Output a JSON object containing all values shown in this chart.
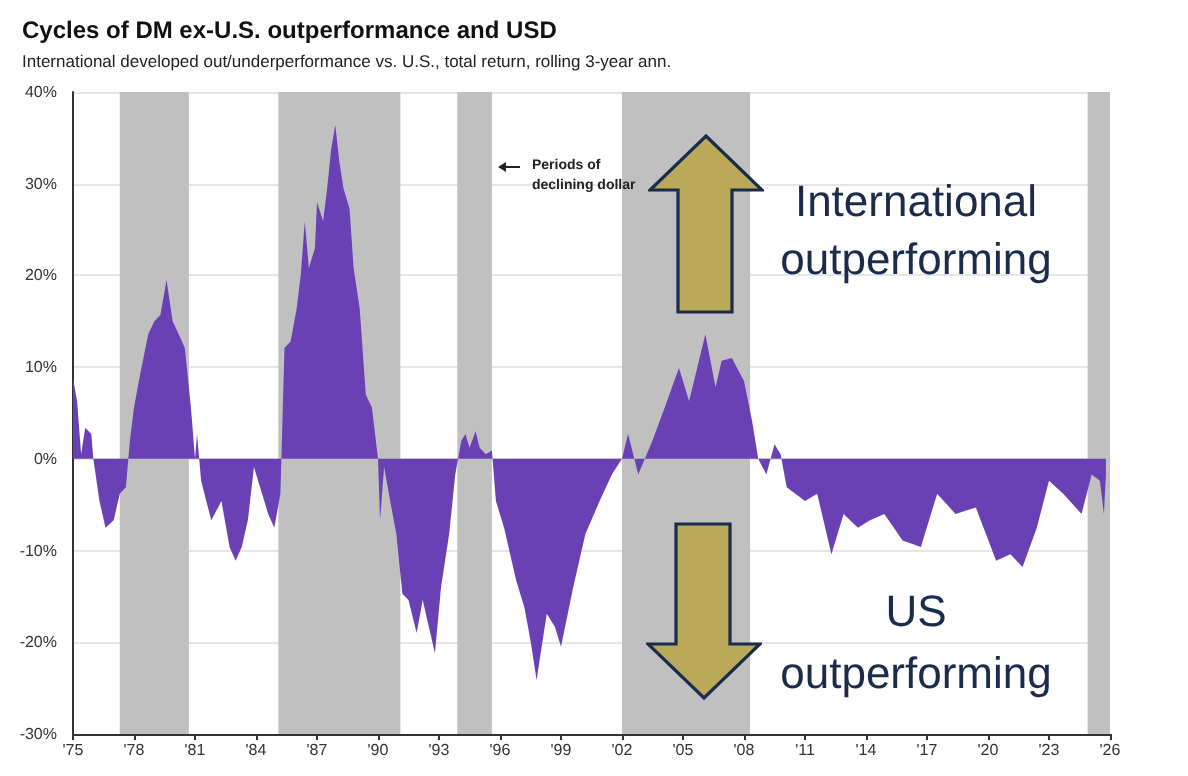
{
  "chart_data": {
    "type": "area",
    "title": "Cycles of DM ex-U.S. outperformance and USD",
    "subtitle": "International developed out/underperformance vs. U.S., total return, rolling 3-year ann.",
    "annotations": [
      "Periods of\ndeclining dollar",
      "International\noutperforming",
      "US\noutperforming"
    ],
    "xlim": [
      1975,
      2026
    ],
    "xticks": [
      {
        "value": 1975,
        "label": "'75"
      },
      {
        "value": 1978,
        "label": "'78"
      },
      {
        "value": 1981,
        "label": "'81"
      },
      {
        "value": 1984,
        "label": "'84"
      },
      {
        "value": 1987,
        "label": "'87"
      },
      {
        "value": 1990,
        "label": "'90"
      },
      {
        "value": 1993,
        "label": "'93"
      },
      {
        "value": 1996,
        "label": "'96"
      },
      {
        "value": 1999,
        "label": "'99"
      },
      {
        "value": 2002,
        "label": "'02"
      },
      {
        "value": 2005,
        "label": "'05"
      },
      {
        "value": 2008,
        "label": "'08"
      },
      {
        "value": 2011,
        "label": "'11"
      },
      {
        "value": 2014,
        "label": "'14"
      },
      {
        "value": 2017,
        "label": "'17"
      },
      {
        "value": 2020,
        "label": "'20"
      },
      {
        "value": 2023,
        "label": "'23"
      },
      {
        "value": 2026,
        "label": "'26"
      }
    ],
    "ylim": [
      -30,
      40
    ],
    "yticks": [
      {
        "value": -30,
        "label": "-30%"
      },
      {
        "value": -20,
        "label": "-20%"
      },
      {
        "value": -10,
        "label": "-10%"
      },
      {
        "value": 0,
        "label": "0%"
      },
      {
        "value": 10,
        "label": "10%"
      },
      {
        "value": 20,
        "label": "20%"
      },
      {
        "value": 30,
        "label": "30%"
      },
      {
        "value": 40,
        "label": "40%"
      }
    ],
    "grid": "y",
    "bands": [
      {
        "axis": "x",
        "from": 1977.3,
        "to": 1980.7,
        "color": "#c0c0c0"
      },
      {
        "axis": "x",
        "from": 1985.1,
        "to": 1991.1,
        "color": "#c0c0c0"
      },
      {
        "axis": "x",
        "from": 1993.9,
        "to": 1995.6,
        "color": "#c0c0c0"
      },
      {
        "axis": "x",
        "from": 2002.0,
        "to": 2008.3,
        "color": "#c0c0c0"
      },
      {
        "axis": "x",
        "from": 2024.9,
        "to": 2026,
        "color": "#c0c0c0"
      }
    ],
    "series": [
      {
        "color": "#6a41b4",
        "x": [
          1975.0,
          1975.2,
          1975.4,
          1975.6,
          1975.9,
          1976.0,
          1976.3,
          1976.6,
          1977.0,
          1977.3,
          1977.6,
          1977.8,
          1978.0,
          1978.3,
          1978.7,
          1979.0,
          1979.3,
          1979.6,
          1979.9,
          1980.2,
          1980.5,
          1980.8,
          1981.0,
          1981.1,
          1981.3,
          1981.8,
          1982.3,
          1982.7,
          1983.0,
          1983.3,
          1983.6,
          1983.9,
          1984.2,
          1984.6,
          1984.9,
          1985.2,
          1985.4,
          1985.7,
          1986.0,
          1986.2,
          1986.4,
          1986.6,
          1986.9,
          1987.0,
          1987.3,
          1987.5,
          1987.7,
          1987.9,
          1988.1,
          1988.3,
          1988.6,
          1988.8,
          1989.1,
          1989.4,
          1989.7,
          1990.0,
          1990.1,
          1990.3,
          1990.6,
          1990.9,
          1991.2,
          1991.5,
          1991.9,
          1992.2,
          1992.5,
          1992.8,
          1993.1,
          1993.5,
          1993.8,
          1994.1,
          1994.3,
          1994.5,
          1994.8,
          1995.0,
          1995.3,
          1995.6,
          1995.8,
          1996.2,
          1996.5,
          1996.8,
          1997.2,
          1997.5,
          1997.8,
          1998.0,
          1998.3,
          1998.7,
          1999.0,
          1999.6,
          2000.2,
          2000.9,
          2001.5,
          2002.0,
          2002.3,
          2002.8,
          2003.5,
          2004.1,
          2004.8,
          2005.3,
          2006.1,
          2006.6,
          2006.9,
          2007.4,
          2008.0,
          2008.4,
          2008.7,
          2009.1,
          2009.5,
          2009.8,
          2010.1,
          2011.0,
          2011.6,
          2012.3,
          2012.9,
          2013.6,
          2014.2,
          2014.9,
          2015.8,
          2016.7,
          2017.5,
          2018.4,
          2019.4,
          2020.4,
          2021.1,
          2021.7,
          2022.4,
          2023.0,
          2023.7,
          2024.6,
          2025.1,
          2025.5,
          2025.7,
          2025.8
        ],
        "values": [
          8.8,
          6.3,
          0.5,
          3.4,
          2.7,
          0,
          -4.6,
          -7.5,
          -6.7,
          -3.8,
          -3.1,
          2,
          5.6,
          9.2,
          13.6,
          15,
          15.7,
          19.5,
          15,
          13.6,
          12.1,
          5.6,
          0,
          2.7,
          -2.4,
          -6.7,
          -4.6,
          -9.6,
          -11.1,
          -9.6,
          -6.7,
          -0.9,
          -3.1,
          -6,
          -7.5,
          -3.8,
          12.1,
          12.8,
          16.4,
          20,
          25.9,
          20.8,
          23,
          28,
          25.9,
          29.5,
          33.8,
          36.4,
          32.4,
          29.5,
          27.3,
          20.8,
          16.4,
          7,
          5.6,
          0,
          -6.7,
          -0.9,
          -4.6,
          -8.2,
          -14.7,
          -15.4,
          -19,
          -15.4,
          -18.3,
          -21.2,
          -14,
          -8.2,
          -1.7,
          2,
          2.7,
          1.2,
          3,
          1.2,
          0.5,
          0.9,
          -4.6,
          -7.5,
          -10.4,
          -13.3,
          -16.2,
          -19.8,
          -24.1,
          -21.2,
          -16.9,
          -18.3,
          -20.5,
          -14,
          -8.2,
          -4.6,
          -1.7,
          0,
          2.7,
          -1.7,
          2,
          5.6,
          9.9,
          6.3,
          13.6,
          7.8,
          10.7,
          11,
          8.5,
          4.1,
          0,
          -1.7,
          1.6,
          0.5,
          -3.1,
          -4.6,
          -3.8,
          -10.4,
          -6,
          -7.5,
          -6.7,
          -6,
          -8.9,
          -9.6,
          -3.8,
          -6,
          -5.3,
          -11.1,
          -10.4,
          -11.8,
          -7.5,
          -2.4,
          -3.8,
          -6,
          -1.7,
          -2.4,
          -6,
          -1.7
        ]
      }
    ]
  }
}
